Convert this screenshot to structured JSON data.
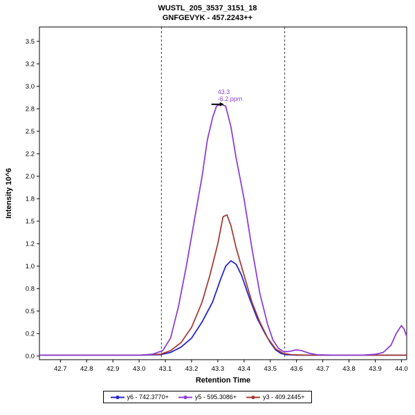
{
  "title": {
    "line1": "WUSTL_205_3537_3151_18",
    "line2": "GNFGEVYK - 457.2243++"
  },
  "chart_data": {
    "type": "line",
    "title": "WUSTL_205_3537_3151_18",
    "subtitle": "GNFGEVYK - 457.2243++",
    "xlabel": "Retention Time",
    "ylabel": "Intensity 10^6",
    "x_range": [
      42.62,
      44.02
    ],
    "y_range": [
      -0.04,
      3.66
    ],
    "grid": false,
    "legend_position": "bottom",
    "x_ticks": [
      {
        "v": 42.7,
        "label": "42.7"
      },
      {
        "v": 42.8,
        "label": "42.8"
      },
      {
        "v": 42.9,
        "label": "42.9"
      },
      {
        "v": 43.0,
        "label": "43.0"
      },
      {
        "v": 43.1,
        "label": "43.1"
      },
      {
        "v": 43.2,
        "label": "43.2"
      },
      {
        "v": 43.3,
        "label": "43.3"
      },
      {
        "v": 43.4,
        "label": "43.4"
      },
      {
        "v": 43.5,
        "label": "43.5"
      },
      {
        "v": 43.6,
        "label": "43.6"
      },
      {
        "v": 43.7,
        "label": "43.7"
      },
      {
        "v": 43.8,
        "label": "43.8"
      },
      {
        "v": 43.9,
        "label": "43.9"
      },
      {
        "v": 44.0,
        "label": "44.0"
      }
    ],
    "y_ticks": [
      {
        "v": 0.0,
        "label": "0.0"
      },
      {
        "v": 0.25,
        "label": "0.2"
      },
      {
        "v": 0.5,
        "label": "0.5"
      },
      {
        "v": 0.75,
        "label": "0.8"
      },
      {
        "v": 1.0,
        "label": "1.0"
      },
      {
        "v": 1.25,
        "label": "1.2"
      },
      {
        "v": 1.5,
        "label": "1.5"
      },
      {
        "v": 1.75,
        "label": "1.8"
      },
      {
        "v": 2.0,
        "label": "2.0"
      },
      {
        "v": 2.25,
        "label": "2.2"
      },
      {
        "v": 2.5,
        "label": "2.5"
      },
      {
        "v": 2.75,
        "label": "2.8"
      },
      {
        "v": 3.0,
        "label": "3.0"
      },
      {
        "v": 3.25,
        "label": "3.2"
      },
      {
        "v": 3.5,
        "label": "3.5"
      }
    ],
    "boundaries": [
      43.085,
      43.555
    ],
    "annotation": {
      "x": 43.31,
      "y": 2.8,
      "line1": "43.3",
      "line2": "-6.2 ppm",
      "color": "#8b3fd6"
    },
    "draw_order": [
      0,
      2,
      1
    ],
    "series": [
      {
        "name": "y6 - 742.3770+",
        "color": "#2525cc",
        "points": [
          [
            42.62,
            0.01
          ],
          [
            42.8,
            0.01
          ],
          [
            43.0,
            0.01
          ],
          [
            43.08,
            0.015
          ],
          [
            43.12,
            0.04
          ],
          [
            43.16,
            0.1
          ],
          [
            43.2,
            0.2
          ],
          [
            43.24,
            0.38
          ],
          [
            43.28,
            0.6
          ],
          [
            43.31,
            0.85
          ],
          [
            43.33,
            1.0
          ],
          [
            43.35,
            1.06
          ],
          [
            43.37,
            1.02
          ],
          [
            43.39,
            0.9
          ],
          [
            43.42,
            0.65
          ],
          [
            43.45,
            0.42
          ],
          [
            43.48,
            0.25
          ],
          [
            43.5,
            0.15
          ],
          [
            43.52,
            0.07
          ],
          [
            43.54,
            0.03
          ],
          [
            43.56,
            0.015
          ],
          [
            43.6,
            0.01
          ],
          [
            43.8,
            0.01
          ],
          [
            44.02,
            0.01
          ]
        ]
      },
      {
        "name": "y5 - 595.3086+",
        "color": "#8b3fd6",
        "points": [
          [
            42.62,
            0.01
          ],
          [
            42.8,
            0.01
          ],
          [
            43.0,
            0.01
          ],
          [
            43.05,
            0.02
          ],
          [
            43.09,
            0.06
          ],
          [
            43.12,
            0.2
          ],
          [
            43.15,
            0.55
          ],
          [
            43.18,
            1.0
          ],
          [
            43.21,
            1.5
          ],
          [
            43.24,
            2.0
          ],
          [
            43.26,
            2.4
          ],
          [
            43.28,
            2.65
          ],
          [
            43.295,
            2.78
          ],
          [
            43.31,
            2.8
          ],
          [
            43.33,
            2.78
          ],
          [
            43.35,
            2.55
          ],
          [
            43.37,
            2.2
          ],
          [
            43.4,
            1.75
          ],
          [
            43.43,
            1.2
          ],
          [
            43.46,
            0.7
          ],
          [
            43.49,
            0.35
          ],
          [
            43.51,
            0.18
          ],
          [
            43.53,
            0.09
          ],
          [
            43.55,
            0.05
          ],
          [
            43.57,
            0.05
          ],
          [
            43.6,
            0.07
          ],
          [
            43.62,
            0.06
          ],
          [
            43.65,
            0.03
          ],
          [
            43.68,
            0.015
          ],
          [
            43.75,
            0.01
          ],
          [
            43.85,
            0.01
          ],
          [
            43.9,
            0.02
          ],
          [
            43.93,
            0.04
          ],
          [
            43.96,
            0.12
          ],
          [
            43.98,
            0.25
          ],
          [
            44.0,
            0.34
          ],
          [
            44.01,
            0.3
          ],
          [
            44.02,
            0.22
          ]
        ]
      },
      {
        "name": "y3 - 409.2445+",
        "color": "#a43b35",
        "points": [
          [
            42.62,
            0.01
          ],
          [
            42.8,
            0.01
          ],
          [
            43.0,
            0.01
          ],
          [
            43.08,
            0.02
          ],
          [
            43.12,
            0.06
          ],
          [
            43.16,
            0.15
          ],
          [
            43.2,
            0.32
          ],
          [
            43.24,
            0.6
          ],
          [
            43.27,
            0.9
          ],
          [
            43.3,
            1.25
          ],
          [
            43.32,
            1.55
          ],
          [
            43.335,
            1.57
          ],
          [
            43.35,
            1.45
          ],
          [
            43.37,
            1.2
          ],
          [
            43.4,
            0.9
          ],
          [
            43.43,
            0.6
          ],
          [
            43.46,
            0.38
          ],
          [
            43.49,
            0.2
          ],
          [
            43.52,
            0.08
          ],
          [
            43.55,
            0.03
          ],
          [
            43.58,
            0.015
          ],
          [
            43.65,
            0.01
          ],
          [
            43.85,
            0.01
          ],
          [
            44.02,
            0.01
          ]
        ]
      }
    ]
  }
}
